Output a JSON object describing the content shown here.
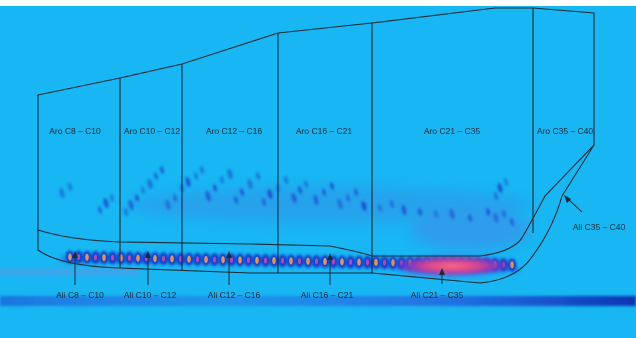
{
  "colors": {
    "background": "#18b6f2",
    "outline": "#1d2a36",
    "band_low": "#0a2db0",
    "band_mid": "#7f2fd0",
    "band_high": "#ff5a7a"
  },
  "aromatic_regions": [
    {
      "label": "Aro C8 – C10"
    },
    {
      "label": "Aro C10 – C12"
    },
    {
      "label": "Aro C12 – C16"
    },
    {
      "label": "Aro C16 – C21"
    },
    {
      "label": "Aro C21 – C35"
    },
    {
      "label": "Aro C35 – C40"
    }
  ],
  "aliphatic_regions": [
    {
      "label": "Ali C8 – C10"
    },
    {
      "label": "Ali C10 – C12"
    },
    {
      "label": "Ali C12 – C16"
    },
    {
      "label": "Ali C16 – C21"
    },
    {
      "label": "Ali C21 – C35"
    },
    {
      "label": "Ali C35 – C40"
    }
  ]
}
